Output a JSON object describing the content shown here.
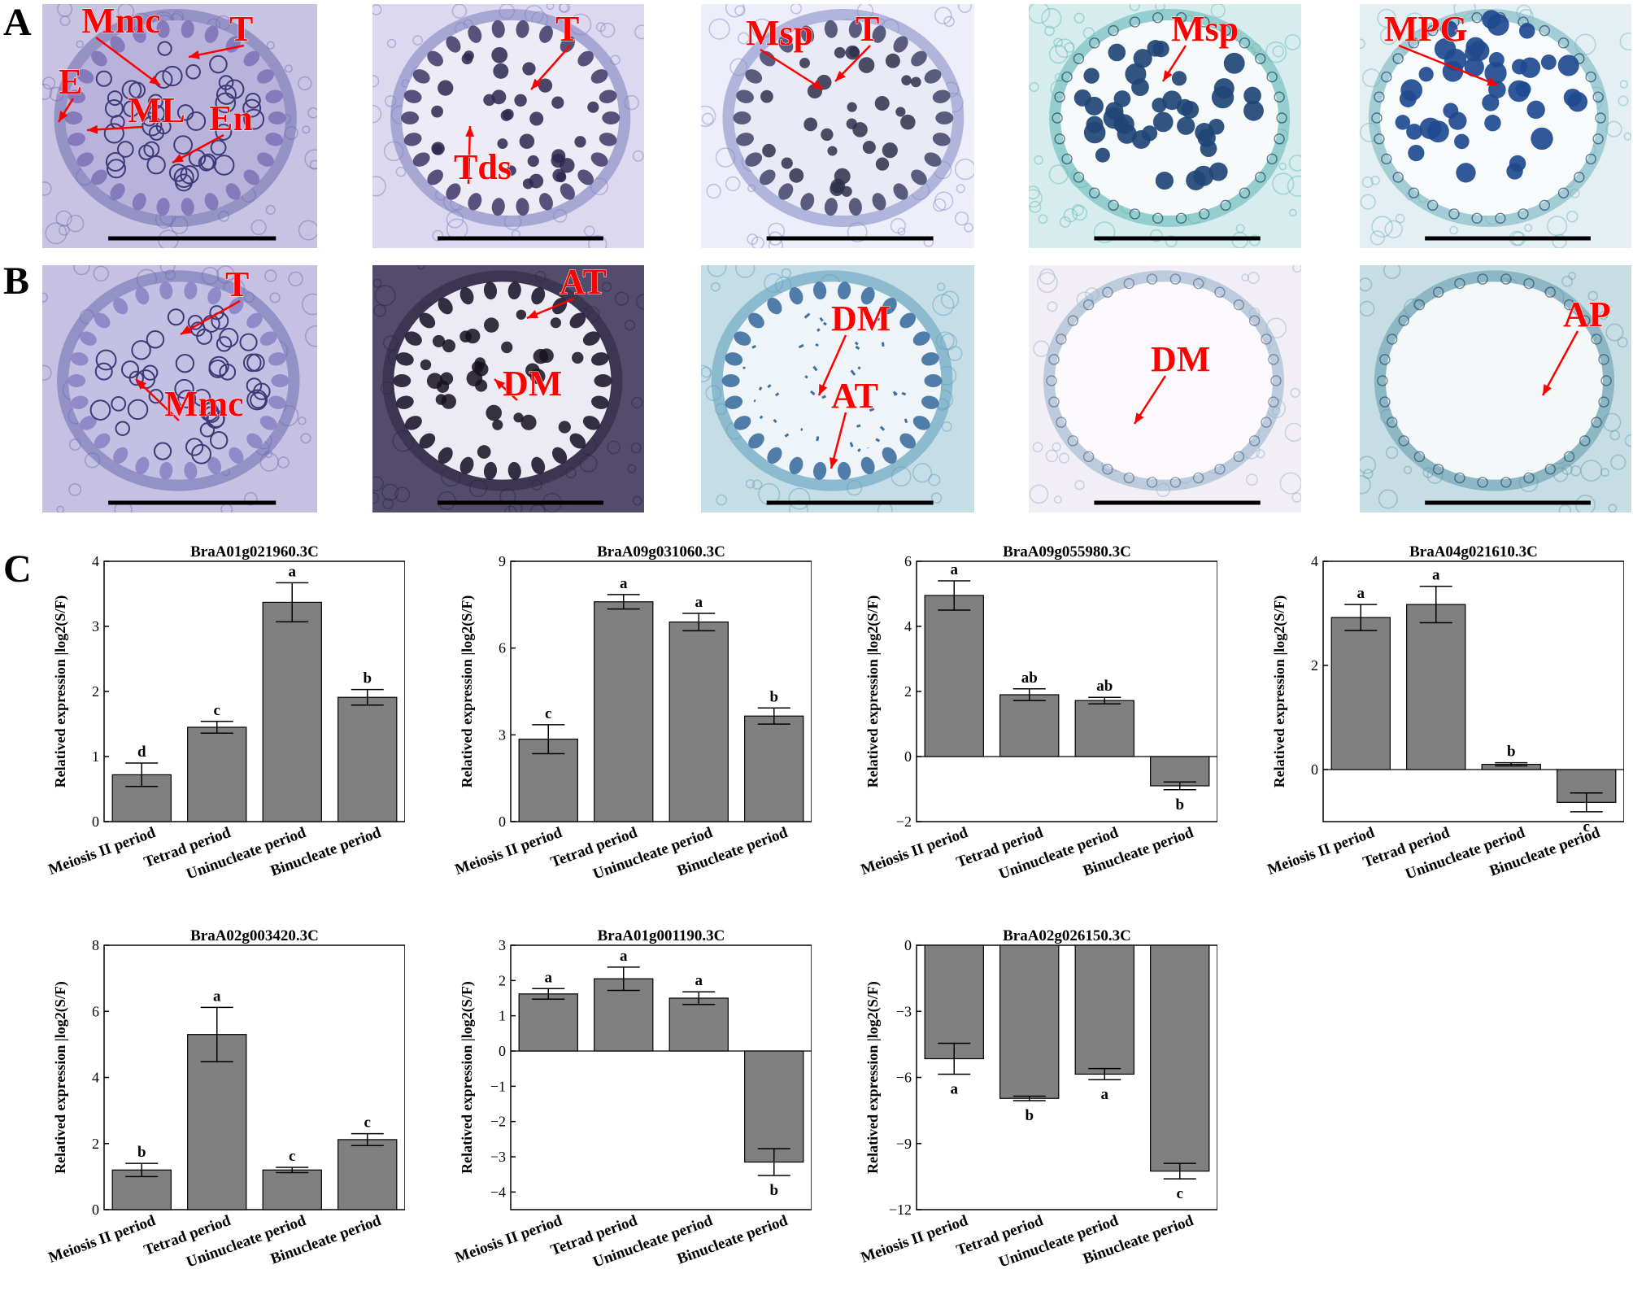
{
  "panel_labels": [
    "A",
    "B",
    "C"
  ],
  "micrographs": {
    "row_a": [
      {
        "labels": [
          "Mmc",
          "T",
          "E",
          "ML",
          "En"
        ]
      },
      {
        "labels": [
          "T",
          "Tds"
        ]
      },
      {
        "labels": [
          "Msp",
          "T"
        ]
      },
      {
        "labels": [
          "Msp"
        ]
      },
      {
        "labels": [
          "MPG"
        ]
      }
    ],
    "row_b": [
      {
        "labels": [
          "T",
          "Mmc"
        ]
      },
      {
        "labels": [
          "AT",
          "DM"
        ]
      },
      {
        "labels": [
          "DM",
          "AT"
        ]
      },
      {
        "labels": [
          "DM"
        ]
      },
      {
        "labels": [
          "AP"
        ]
      }
    ]
  },
  "colors": {
    "bar": "#808080",
    "annotation": "#ff0000",
    "axis": "#000000"
  },
  "chart_data": [
    {
      "type": "bar",
      "title": "BraA01g021960.3C",
      "ylabel": "Relatived expression |log2(S/F)",
      "categories": [
        "Meiosis II period",
        "Tetrad period",
        "Uninucleate period",
        "Binucleate period"
      ],
      "values": [
        0.72,
        1.45,
        3.37,
        1.91
      ],
      "errors": [
        0.18,
        0.09,
        0.3,
        0.12
      ],
      "letters": [
        "d",
        "c",
        "a",
        "b"
      ],
      "ylim": [
        0,
        4
      ],
      "yticks": [
        0,
        1,
        2,
        3,
        4
      ]
    },
    {
      "type": "bar",
      "title": "BraA09g031060.3C",
      "ylabel": "Relatived expression |log2(S/F)",
      "categories": [
        "Meiosis II period",
        "Tetrad period",
        "Uninucleate period",
        "Binucleate period"
      ],
      "values": [
        2.85,
        7.6,
        6.9,
        3.65
      ],
      "errors": [
        0.5,
        0.25,
        0.3,
        0.28
      ],
      "letters": [
        "c",
        "a",
        "a",
        "b"
      ],
      "ylim": [
        0,
        9
      ],
      "yticks": [
        0,
        3,
        6,
        9
      ]
    },
    {
      "type": "bar",
      "title": "BraA09g055980.3C",
      "ylabel": "Relatived expression |log2(S/F)",
      "categories": [
        "Meiosis II period",
        "Tetrad period",
        "Uninucleate period",
        "Binucleate period"
      ],
      "values": [
        4.95,
        1.9,
        1.72,
        -0.9
      ],
      "errors": [
        0.45,
        0.18,
        0.1,
        0.12
      ],
      "letters": [
        "a",
        "ab",
        "ab",
        "b"
      ],
      "ylim": [
        -2,
        6
      ],
      "yticks": [
        -2,
        0,
        2,
        4,
        6
      ]
    },
    {
      "type": "bar",
      "title": "BraA04g021610.3C",
      "ylabel": "Relatived expression |log2(S/F)",
      "categories": [
        "Meiosis II period",
        "Tetrad period",
        "Uninucleate period",
        "Binucleate period"
      ],
      "values": [
        2.92,
        3.17,
        0.1,
        -0.63
      ],
      "errors": [
        0.25,
        0.35,
        0.03,
        0.18
      ],
      "letters": [
        "a",
        "a",
        "b",
        "c"
      ],
      "ylim": [
        -1,
        4
      ],
      "yticks": [
        0,
        2,
        4
      ]
    },
    {
      "type": "bar",
      "title": "BraA02g003420.3C",
      "ylabel": "Relatived expression |log2(S/F)",
      "categories": [
        "Meiosis II period",
        "Tetrad period",
        "Uninucleate period",
        "Binucleate period"
      ],
      "values": [
        1.2,
        5.3,
        1.2,
        2.12
      ],
      "errors": [
        0.2,
        0.82,
        0.08,
        0.18
      ],
      "letters": [
        "b",
        "a",
        "c",
        "c"
      ],
      "ylim": [
        0,
        8
      ],
      "yticks": [
        0,
        2,
        4,
        6,
        8
      ]
    },
    {
      "type": "bar",
      "title": "BraA01g001190.3C",
      "ylabel": "Relatived expression |log2(S/F)",
      "categories": [
        "Meiosis II period",
        "Tetrad period",
        "Uninucleate period",
        "Binucleate period"
      ],
      "values": [
        1.62,
        2.05,
        1.5,
        -3.15
      ],
      "errors": [
        0.15,
        0.33,
        0.18,
        0.38
      ],
      "letters": [
        "a",
        "a",
        "a",
        "b"
      ],
      "ylim": [
        -4.5,
        3
      ],
      "yticks": [
        -4,
        -3,
        -2,
        -1,
        0,
        1,
        2,
        3
      ]
    },
    {
      "type": "bar",
      "title": "BraA02g026150.3C",
      "ylabel": "Relatived expression |log2(S/F)",
      "categories": [
        "Meiosis II period",
        "Tetrad period",
        "Uninucleate period",
        "Binucleate period"
      ],
      "values": [
        -5.15,
        -6.95,
        -5.85,
        -10.25
      ],
      "errors": [
        0.7,
        0.1,
        0.25,
        0.35
      ],
      "letters": [
        "a",
        "b",
        "a",
        "c"
      ],
      "ylim": [
        -12,
        0
      ],
      "yticks": [
        -12,
        -9,
        -6,
        -3,
        0
      ]
    }
  ]
}
